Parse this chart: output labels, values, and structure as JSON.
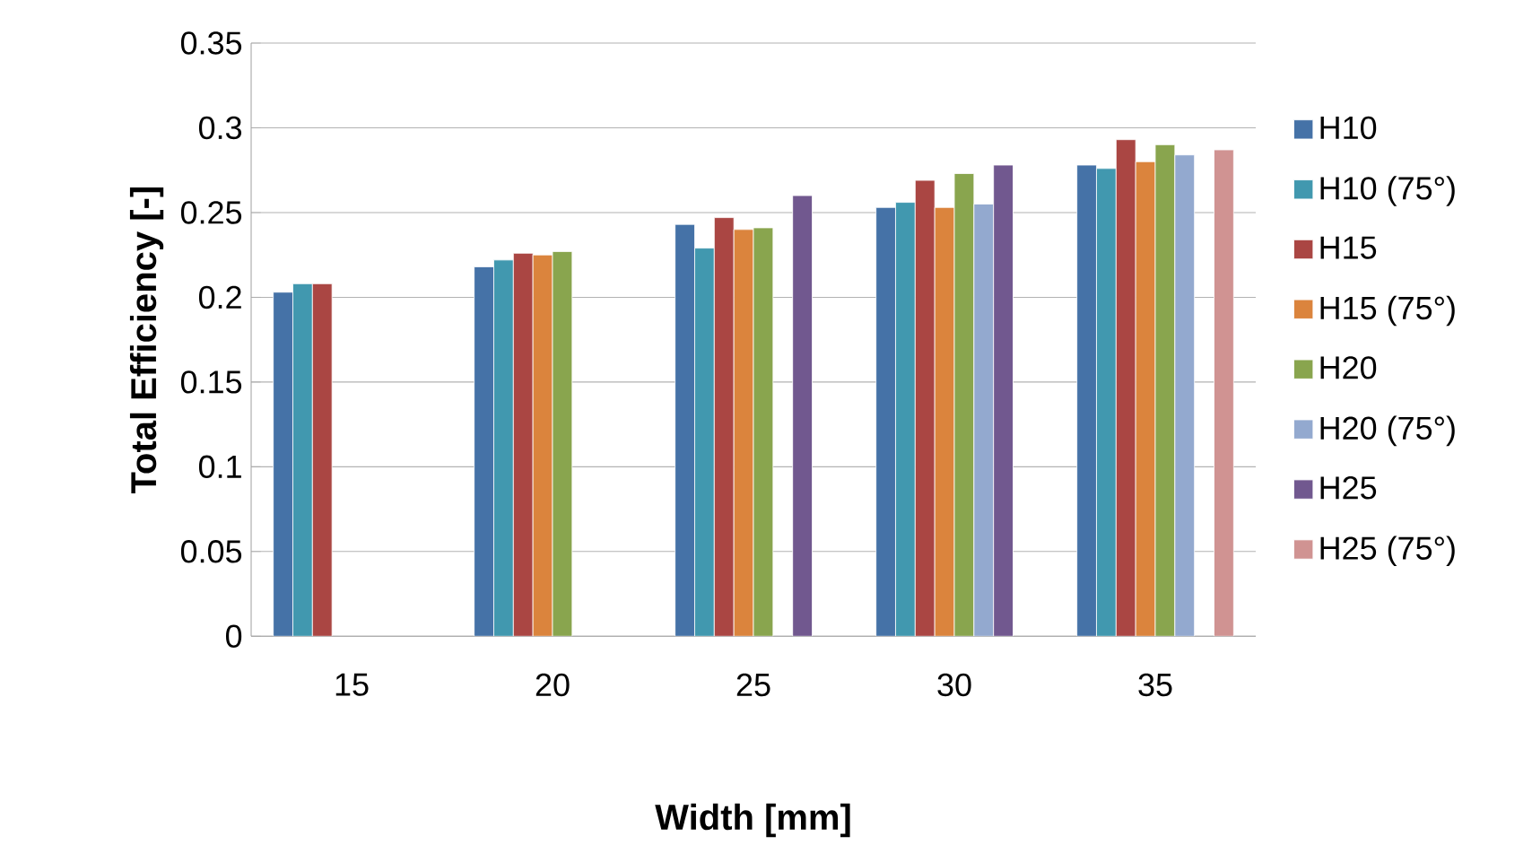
{
  "chart_data": {
    "type": "bar",
    "xlabel": "Width [mm]",
    "ylabel": "Total Efficiency [-]",
    "categories": [
      "15",
      "20",
      "25",
      "30",
      "35"
    ],
    "ylim": [
      0,
      0.35
    ],
    "yticks": [
      0,
      0.05,
      0.1,
      0.15,
      0.2,
      0.25,
      0.3,
      0.35
    ],
    "grid": "y",
    "legend": "right",
    "series": [
      {
        "name": "H10",
        "color": "#4572a7",
        "values": [
          0.203,
          0.218,
          0.243,
          0.253,
          0.278
        ]
      },
      {
        "name": "H10 (75°)",
        "color": "#4198af",
        "values": [
          0.208,
          0.222,
          0.229,
          0.256,
          0.276
        ]
      },
      {
        "name": "H15",
        "color": "#aa4643",
        "values": [
          0.208,
          0.226,
          0.247,
          0.269,
          0.293
        ]
      },
      {
        "name": "H15 (75°)",
        "color": "#db843d",
        "values": [
          null,
          0.225,
          0.24,
          0.253,
          0.28
        ]
      },
      {
        "name": "H20",
        "color": "#89a54e",
        "values": [
          null,
          0.227,
          0.241,
          0.273,
          0.29
        ]
      },
      {
        "name": "H20 (75°)",
        "color": "#93a9cf",
        "values": [
          null,
          null,
          null,
          0.255,
          0.284
        ]
      },
      {
        "name": "H25",
        "color": "#71588f",
        "values": [
          null,
          null,
          0.26,
          0.278,
          null
        ]
      },
      {
        "name": "H25 (75°)",
        "color": "#d09392",
        "values": [
          null,
          null,
          null,
          null,
          0.287
        ]
      }
    ]
  }
}
